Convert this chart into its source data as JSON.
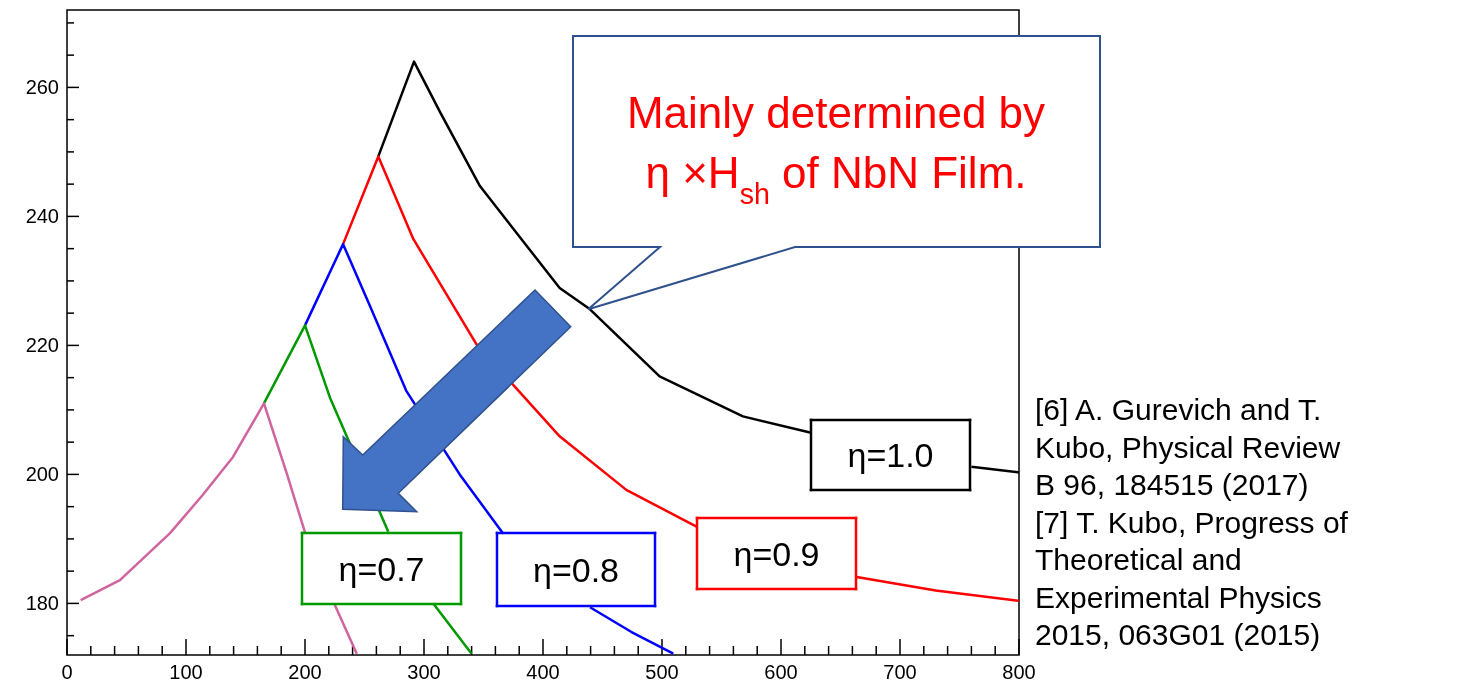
{
  "chart_data": {
    "type": "line",
    "xlim": [
      0,
      800
    ],
    "ylim": [
      172,
      272
    ],
    "xticks": [
      0,
      {
        "value": 20,
        "label": null
      },
      {
        "value": 40,
        "label": null
      },
      {
        "value": 60,
        "label": null
      },
      {
        "value": 80,
        "label": null
      },
      100,
      {
        "value": 120,
        "label": null
      },
      {
        "value": 140,
        "label": null
      },
      {
        "value": 160,
        "label": null
      },
      {
        "value": 180,
        "label": null
      },
      200,
      {
        "value": 220,
        "label": null
      },
      {
        "value": 240,
        "label": null
      },
      {
        "value": 260,
        "label": null
      },
      {
        "value": 280,
        "label": null
      },
      300,
      {
        "value": 320,
        "label": null
      },
      {
        "value": 340,
        "label": null
      },
      {
        "value": 360,
        "label": null
      },
      {
        "value": 380,
        "label": null
      },
      400,
      {
        "value": 420,
        "label": null
      },
      {
        "value": 440,
        "label": null
      },
      {
        "value": 460,
        "label": null
      },
      {
        "value": 480,
        "label": null
      },
      500,
      {
        "value": 520,
        "label": null
      },
      {
        "value": 540,
        "label": null
      },
      {
        "value": 560,
        "label": null
      },
      {
        "value": 580,
        "label": null
      },
      600,
      {
        "value": 620,
        "label": null
      },
      {
        "value": 640,
        "label": null
      },
      {
        "value": 660,
        "label": null
      },
      {
        "value": 680,
        "label": null
      },
      700,
      {
        "value": 720,
        "label": null
      },
      {
        "value": 740,
        "label": null
      },
      {
        "value": 760,
        "label": null
      },
      {
        "value": 780,
        "label": null
      },
      800
    ],
    "yticks": [
      {
        "value": 175,
        "label": null
      },
      180,
      {
        "value": 185,
        "label": null
      },
      {
        "value": 190,
        "label": null
      },
      {
        "value": 195,
        "label": null
      },
      200,
      {
        "value": 205,
        "label": null
      },
      {
        "value": 210,
        "label": null
      },
      {
        "value": 215,
        "label": null
      },
      220,
      {
        "value": 225,
        "label": null
      },
      {
        "value": 230,
        "label": null
      },
      {
        "value": 235,
        "label": null
      },
      240,
      {
        "value": 245,
        "label": null
      },
      {
        "value": 250,
        "label": null
      },
      {
        "value": 255,
        "label": null
      },
      260,
      {
        "value": 265,
        "label": null
      },
      {
        "value": 270,
        "label": null
      }
    ],
    "grid": false,
    "legend": "bottom right",
    "marker": "none",
    "line_style": "solid",
    "series": [
      {
        "name": "η=1.0",
        "color": "#000000",
        "x": [
          261.6,
          291.6,
          313.4,
          347,
          414,
          439.5,
          498,
          568,
          624.4,
          690,
          760,
          800
        ],
        "values": [
          249.3,
          264,
          256.2,
          244.7,
          228.9,
          225.6,
          215.2,
          209,
          206.5,
          null,
          201.2,
          200.3
        ]
      },
      {
        "name": "η=0.9",
        "color": "#ff0000",
        "x": [
          232,
          261.6,
          291,
          344,
          414,
          470,
          529,
          600,
          663.6,
          730,
          800
        ],
        "values": [
          235.7,
          249.3,
          236.5,
          220.2,
          205.9,
          197.6,
          191.9,
          null,
          184.1,
          182,
          180.4
        ]
      },
      {
        "name": "η=0.8",
        "color": "#0000ff",
        "x": [
          200,
          232,
          254.6,
          285,
          330,
          366.6,
          400,
          439.5,
          474,
          509.5
        ],
        "values": [
          223.1,
          235.7,
          226.1,
          213,
          200,
          190.8,
          null,
          179.4,
          175.6,
          172.2
        ]
      },
      {
        "name": "η=0.7",
        "color": "#009900",
        "x": [
          165.5,
          200,
          221,
          270,
          290,
          307.8,
          340
        ],
        "values": [
          211,
          223.1,
          211.9,
          191.1,
          null,
          180,
          172.2
        ]
      },
      {
        "color": "#d0649e",
        "x": [
          11.5,
          44.5,
          86.6,
          114,
          139.5,
          165.5,
          184.6,
          200,
          212,
          225,
          243.5
        ],
        "values": [
          180.5,
          183.6,
          190.9,
          196.8,
          202.7,
          211,
          200.2,
          191,
          null,
          179.8,
          172.2
        ]
      }
    ],
    "annotations": [
      {
        "text": "Mainly determined by\nη ×H$_{sh}$ of NbN Film.",
        "x": 438,
        "y": 225.6
      },
      "[6] A. Gurevich and T.\nKubo, Physical Review\nB 96, 184515 (2017)\n[7] T. Kubo, Progress of\nTheoretical and\nExperimental Physics\n2015, 063G01 (2015)"
    ]
  }
}
